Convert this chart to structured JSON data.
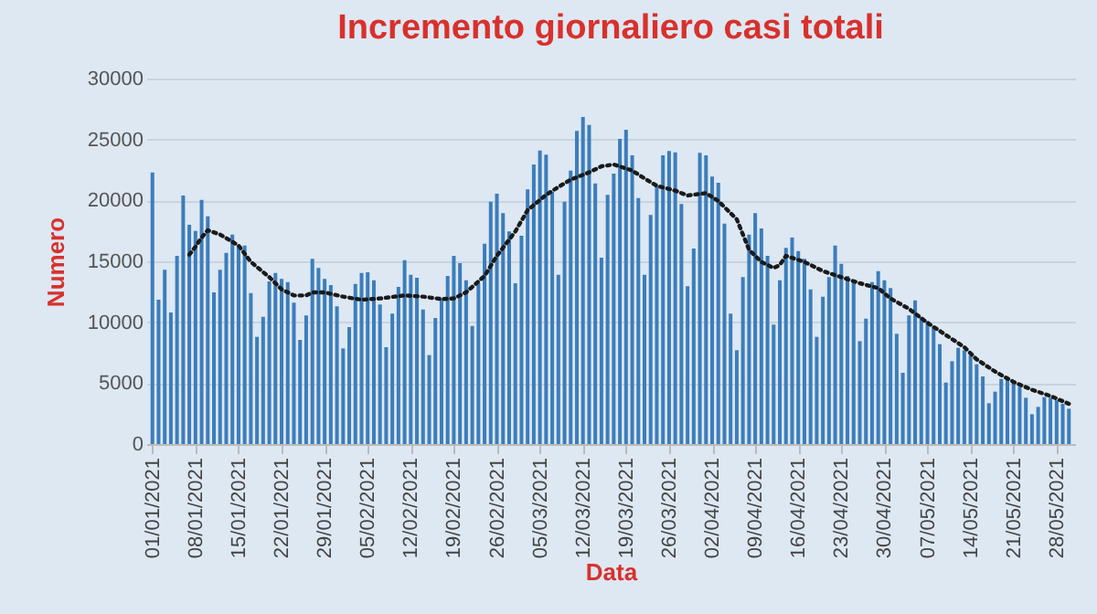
{
  "chart_data": {
    "type": "bar",
    "title": "Incremento giornaliero casi totali",
    "xlabel": "Data",
    "ylabel": "Numero",
    "xlim": [
      "2020-12-31",
      "2021-05-31"
    ],
    "xticks": [
      {
        "value": "2021-01-01",
        "label": "01/01/2021"
      },
      {
        "value": "2021-01-08",
        "label": "08/01/2021"
      },
      {
        "value": "2021-01-15",
        "label": "15/01/2021"
      },
      {
        "value": "2021-01-22",
        "label": "22/01/2021"
      },
      {
        "value": "2021-01-29",
        "label": "29/01/2021"
      },
      {
        "value": "2021-02-05",
        "label": "05/02/2021"
      },
      {
        "value": "2021-02-12",
        "label": "12/02/2021"
      },
      {
        "value": "2021-02-19",
        "label": "19/02/2021"
      },
      {
        "value": "2021-02-26",
        "label": "26/02/2021"
      },
      {
        "value": "2021-03-05",
        "label": "05/03/2021"
      },
      {
        "value": "2021-03-12",
        "label": "12/03/2021"
      },
      {
        "value": "2021-03-19",
        "label": "19/03/2021"
      },
      {
        "value": "2021-03-26",
        "label": "26/03/2021"
      },
      {
        "value": "2021-04-02",
        "label": "02/04/2021"
      },
      {
        "value": "2021-04-09",
        "label": "09/04/2021"
      },
      {
        "value": "2021-04-16",
        "label": "16/04/2021"
      },
      {
        "value": "2021-04-23",
        "label": "23/04/2021"
      },
      {
        "value": "2021-04-30",
        "label": "30/04/2021"
      },
      {
        "value": "2021-05-07",
        "label": "07/05/2021"
      },
      {
        "value": "2021-05-14",
        "label": "14/05/2021"
      },
      {
        "value": "2021-05-21",
        "label": "21/05/2021"
      },
      {
        "value": "2021-05-28",
        "label": "28/05/2021"
      }
    ],
    "ylim": [
      0,
      30000
    ],
    "yticks": [
      0,
      5000,
      10000,
      15000,
      20000,
      25000,
      30000
    ],
    "grid": "y",
    "series": [
      {
        "color": "#3c7dbb",
        "x": [
          "2021-01-01",
          "2021-01-02",
          "2021-01-03",
          "2021-01-04",
          "2021-01-05",
          "2021-01-06",
          "2021-01-07",
          "2021-01-08",
          "2021-01-09",
          "2021-01-10",
          "2021-01-11",
          "2021-01-12",
          "2021-01-13",
          "2021-01-14",
          "2021-01-15",
          "2021-01-16",
          "2021-01-17",
          "2021-01-18",
          "2021-01-19",
          "2021-01-20",
          "2021-01-21",
          "2021-01-22",
          "2021-01-23",
          "2021-01-24",
          "2021-01-25",
          "2021-01-26",
          "2021-01-27",
          "2021-01-28",
          "2021-01-29",
          "2021-01-30",
          "2021-01-31",
          "2021-02-01",
          "2021-02-02",
          "2021-02-03",
          "2021-02-04",
          "2021-02-05",
          "2021-02-06",
          "2021-02-07",
          "2021-02-08",
          "2021-02-09",
          "2021-02-10",
          "2021-02-11",
          "2021-02-12",
          "2021-02-13",
          "2021-02-14",
          "2021-02-15",
          "2021-02-16",
          "2021-02-17",
          "2021-02-18",
          "2021-02-19",
          "2021-02-20",
          "2021-02-21",
          "2021-02-22",
          "2021-02-23",
          "2021-02-24",
          "2021-02-25",
          "2021-02-26",
          "2021-02-27",
          "2021-02-28",
          "2021-03-01",
          "2021-03-02",
          "2021-03-03",
          "2021-03-04",
          "2021-03-05",
          "2021-03-06",
          "2021-03-07",
          "2021-03-08",
          "2021-03-09",
          "2021-03-10",
          "2021-03-11",
          "2021-03-12",
          "2021-03-13",
          "2021-03-14",
          "2021-03-15",
          "2021-03-16",
          "2021-03-17",
          "2021-03-18",
          "2021-03-19",
          "2021-03-20",
          "2021-03-21",
          "2021-03-22",
          "2021-03-23",
          "2021-03-24",
          "2021-03-25",
          "2021-03-26",
          "2021-03-27",
          "2021-03-28",
          "2021-03-29",
          "2021-03-30",
          "2021-03-31",
          "2021-04-01",
          "2021-04-02",
          "2021-04-03",
          "2021-04-04",
          "2021-04-05",
          "2021-04-06",
          "2021-04-07",
          "2021-04-08",
          "2021-04-09",
          "2021-04-10",
          "2021-04-11",
          "2021-04-12",
          "2021-04-13",
          "2021-04-14",
          "2021-04-15",
          "2021-04-16",
          "2021-04-17",
          "2021-04-18",
          "2021-04-19",
          "2021-04-20",
          "2021-04-21",
          "2021-04-22",
          "2021-04-23",
          "2021-04-24",
          "2021-04-25",
          "2021-04-26",
          "2021-04-27",
          "2021-04-28",
          "2021-04-29",
          "2021-04-30",
          "2021-05-01",
          "2021-05-02",
          "2021-05-03",
          "2021-05-04",
          "2021-05-05",
          "2021-05-06",
          "2021-05-07",
          "2021-05-08",
          "2021-05-09",
          "2021-05-10",
          "2021-05-11",
          "2021-05-12",
          "2021-05-13",
          "2021-05-14",
          "2021-05-15",
          "2021-05-16",
          "2021-05-17",
          "2021-05-18",
          "2021-05-19",
          "2021-05-20",
          "2021-05-21",
          "2021-05-22",
          "2021-05-23",
          "2021-05-24",
          "2021-05-25",
          "2021-05-26",
          "2021-05-27",
          "2021-05-28",
          "2021-05-29",
          "2021-05-30"
        ],
        "values": [
          22300,
          11850,
          14300,
          10800,
          15450,
          20400,
          18000,
          17500,
          20050,
          18700,
          12450,
          14300,
          15700,
          17200,
          16300,
          16300,
          12400,
          8800,
          10450,
          13350,
          14050,
          13550,
          13300,
          11600,
          8550,
          10550,
          15200,
          14450,
          13550,
          13050,
          11300,
          7850,
          9600,
          13150,
          14050,
          14100,
          13450,
          11450,
          7950,
          10700,
          12900,
          15100,
          13900,
          13650,
          11050,
          7300,
          10350,
          11950,
          13800,
          15450,
          14850,
          13450,
          9700,
          13200,
          16450,
          19900,
          20550,
          18950,
          17450,
          13200,
          17100,
          20900,
          22950,
          24100,
          23750,
          20700,
          13900,
          19900,
          22450,
          25700,
          26850,
          26200,
          21400,
          15300,
          20450,
          22200,
          25050,
          25800,
          23700,
          20200,
          13900,
          18800,
          21200,
          23700,
          24050,
          23950,
          19700,
          12950,
          16050,
          23900,
          23700,
          21950,
          21450,
          18100,
          10700,
          7700,
          13700,
          17200,
          18950,
          17700,
          15450,
          9800,
          13450,
          16100,
          16950,
          15850,
          15200,
          12700,
          8800,
          12100,
          13700,
          16300,
          14800,
          13800,
          13300,
          8450,
          10300,
          13300,
          14200,
          13450,
          12800,
          9050,
          5850,
          10550,
          11800,
          10450,
          10100,
          9600,
          8200,
          5050,
          6800,
          7900,
          7700,
          7300,
          6550,
          5550,
          3350,
          4300,
          5350,
          5350,
          5050,
          4700,
          3800,
          2450,
          3050,
          3850,
          3800,
          3600,
          3300,
          2900
        ]
      },
      {
        "type": "line",
        "color": "#1a1a1a",
        "line_style": "dotted",
        "marker": "none",
        "x": [
          "2021-01-07",
          "2021-01-08",
          "2021-01-09",
          "2021-01-10",
          "2021-01-12",
          "2021-01-15",
          "2021-01-17",
          "2021-01-20",
          "2021-01-22",
          "2021-01-24",
          "2021-01-26",
          "2021-01-27",
          "2021-01-29",
          "2021-02-01",
          "2021-02-04",
          "2021-02-07",
          "2021-02-11",
          "2021-02-14",
          "2021-02-17",
          "2021-02-19",
          "2021-02-21",
          "2021-02-24",
          "2021-02-26",
          "2021-03-01",
          "2021-03-03",
          "2021-03-06",
          "2021-03-08",
          "2021-03-10",
          "2021-03-13",
          "2021-03-15",
          "2021-03-17",
          "2021-03-20",
          "2021-03-22",
          "2021-03-24",
          "2021-03-27",
          "2021-03-29",
          "2021-04-01",
          "2021-04-03",
          "2021-04-06",
          "2021-04-08",
          "2021-04-10",
          "2021-04-12",
          "2021-04-13",
          "2021-04-14",
          "2021-04-17",
          "2021-04-20",
          "2021-04-23",
          "2021-04-26",
          "2021-04-29",
          "2021-05-01",
          "2021-05-04",
          "2021-05-07",
          "2021-05-10",
          "2021-05-13",
          "2021-05-15",
          "2021-05-18",
          "2021-05-21",
          "2021-05-24",
          "2021-05-27",
          "2021-05-30"
        ],
        "values": [
          15550,
          16200,
          16950,
          17550,
          17200,
          16300,
          14950,
          13700,
          12700,
          12200,
          12200,
          12450,
          12450,
          12100,
          11850,
          11950,
          12200,
          12100,
          11900,
          11950,
          12450,
          13800,
          15450,
          17450,
          19200,
          20450,
          21100,
          21700,
          22300,
          22800,
          22950,
          22450,
          21800,
          21200,
          20800,
          20400,
          20600,
          19950,
          18450,
          15950,
          14950,
          14450,
          14700,
          15450,
          14950,
          14200,
          13700,
          13200,
          12800,
          11950,
          11100,
          9950,
          8950,
          7950,
          6950,
          5950,
          5100,
          4450,
          3950,
          3300
        ]
      }
    ]
  }
}
